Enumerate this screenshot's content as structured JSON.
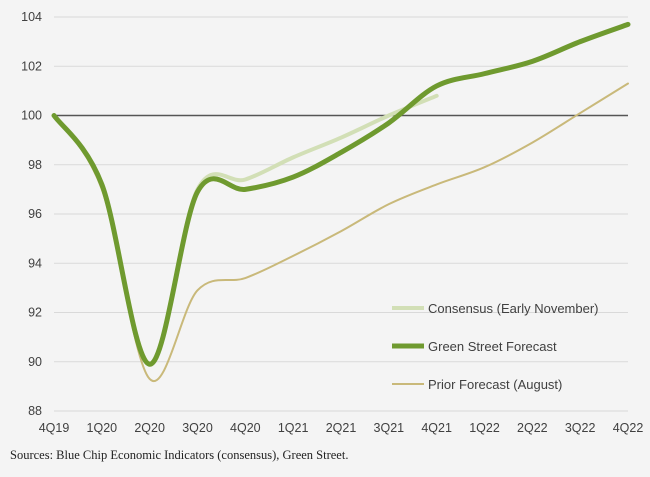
{
  "chart_data": {
    "type": "line",
    "title": "",
    "xlabel": "",
    "ylabel": "",
    "categories": [
      "4Q19",
      "1Q20",
      "2Q20",
      "3Q20",
      "4Q20",
      "1Q21",
      "2Q21",
      "3Q21",
      "4Q21",
      "1Q22",
      "2Q22",
      "3Q22",
      "4Q22"
    ],
    "ylim": [
      88,
      104
    ],
    "yticks": [
      88,
      90,
      92,
      94,
      96,
      98,
      100,
      102,
      104
    ],
    "grid": true,
    "reference_line": 100,
    "legend_position": "bottom-right",
    "series": [
      {
        "name": "Consensus (Early November)",
        "color": "#d2dfb6",
        "width": 4,
        "values": [
          100,
          97.2,
          89.9,
          97.0,
          97.4,
          98.3,
          99.1,
          100.0,
          100.8,
          null,
          null,
          null,
          null
        ]
      },
      {
        "name": "Green Street Forecast",
        "color": "#6f9a2f",
        "width": 5,
        "values": [
          100,
          97.2,
          89.9,
          96.9,
          97.0,
          97.5,
          98.5,
          99.7,
          101.2,
          101.7,
          102.2,
          103.0,
          103.7
        ]
      },
      {
        "name": "Prior Forecast (August)",
        "color": "#c9b97a",
        "width": 2,
        "values": [
          100,
          97.0,
          89.3,
          92.9,
          93.4,
          94.3,
          95.3,
          96.4,
          97.2,
          97.9,
          98.9,
          100.1,
          101.3
        ]
      }
    ]
  },
  "footer": {
    "source": "Sources: Blue Chip Economic Indicators (consensus), Green Street."
  }
}
